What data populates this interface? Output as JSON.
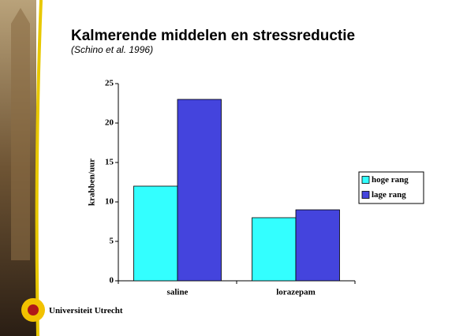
{
  "header": {
    "title": "Kalmerende middelen en stressreductie",
    "subtitle": "(Schino et al. 1996)"
  },
  "chart_data": {
    "type": "bar",
    "y_label": "krabben/uur",
    "categories": [
      "saline",
      "lorazepam"
    ],
    "series": [
      {
        "name": "hoge rang",
        "color": "#33ffff",
        "values": [
          12,
          8
        ]
      },
      {
        "name": "lage rang",
        "color": "#4444dd",
        "values": [
          23,
          9
        ]
      }
    ],
    "ylim": [
      0,
      25
    ],
    "yticks": [
      0,
      5,
      10,
      15,
      20,
      25
    ],
    "legend": "right"
  },
  "footer": {
    "logo_text": "Universiteit Utrecht"
  }
}
